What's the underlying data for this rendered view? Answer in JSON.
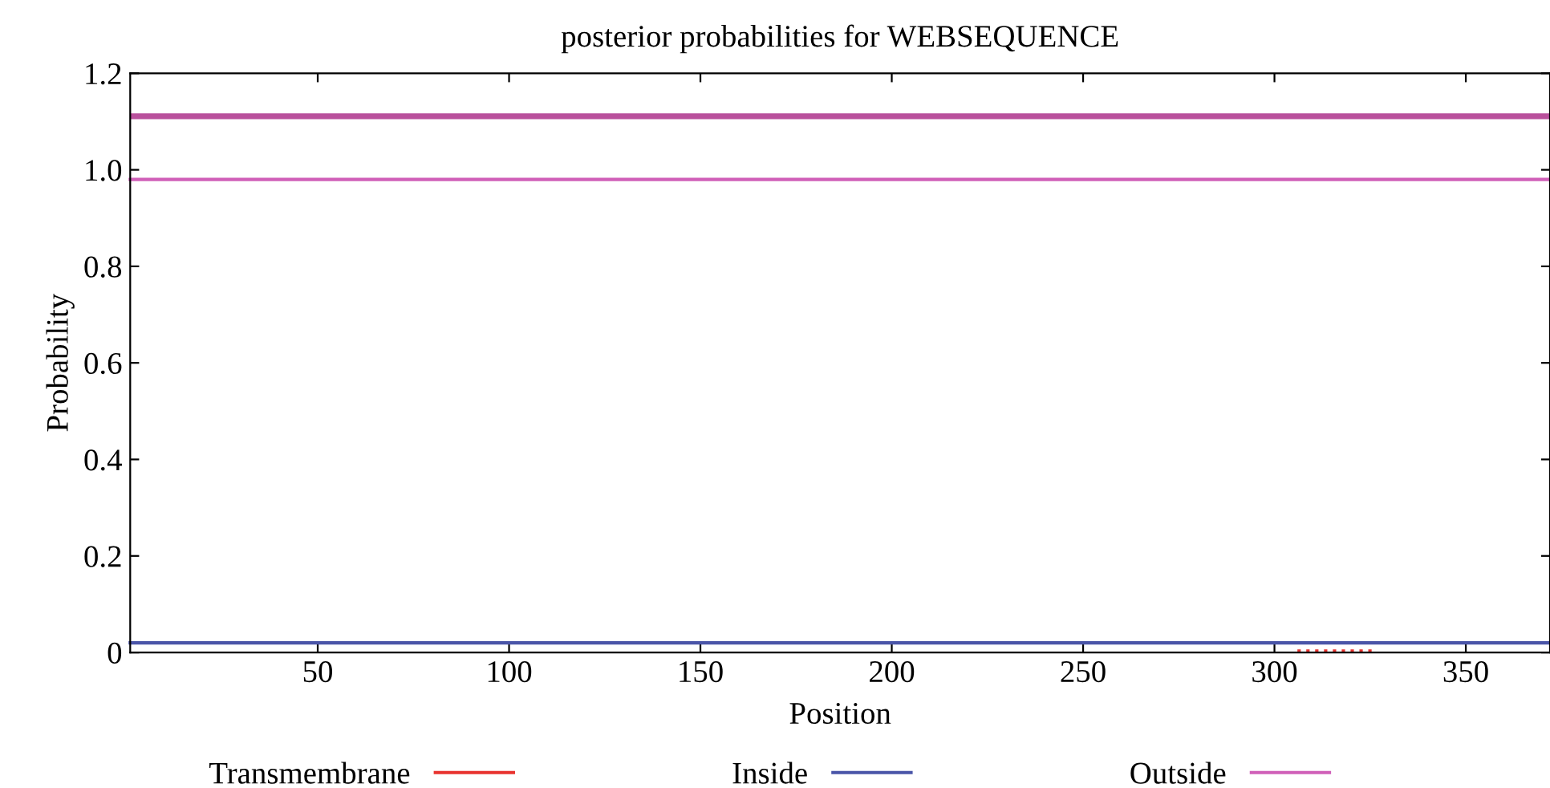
{
  "chart_data": {
    "type": "line",
    "title": "posterior probabilities for WEBSEQUENCE",
    "xlabel": "Position",
    "ylabel": "Probability",
    "xlim": [
      1,
      372
    ],
    "xticks": [
      50,
      100,
      150,
      200,
      250,
      300,
      350
    ],
    "ylim": [
      0,
      1.2
    ],
    "yticks": [
      0,
      0.2,
      0.4,
      0.6,
      0.8,
      {
        "value": 1.0,
        "label": "1.0"
      },
      1.2
    ],
    "legend": "bottom",
    "grid": false,
    "marker": "none",
    "bands": [
      {
        "axis": "y",
        "from": 1.105,
        "to": 1.117,
        "color": "#b9509c"
      }
    ],
    "series": [
      {
        "name": "Transmembrane",
        "color": "#e8332f",
        "line_style": "dotted",
        "x": [
          306,
          326
        ],
        "values": [
          0.003,
          0.003
        ]
      },
      {
        "name": "Inside",
        "color": "#4a55a8",
        "x": [
          1,
          372
        ],
        "values": [
          0.02,
          0.02
        ]
      },
      {
        "name": "Outside",
        "color": "#d060b8",
        "x": [
          1,
          372
        ],
        "values": [
          0.98,
          0.98
        ]
      }
    ]
  }
}
